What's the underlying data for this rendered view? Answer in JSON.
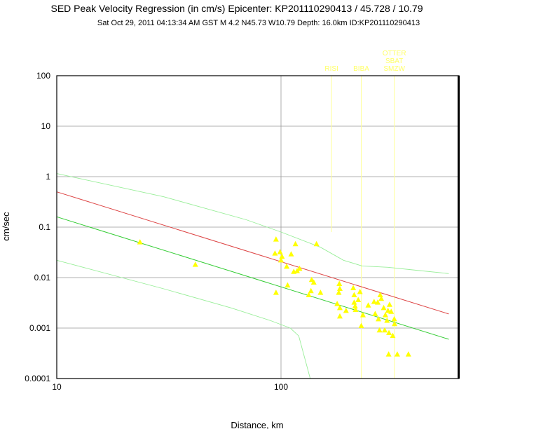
{
  "chart_data": {
    "type": "scatter",
    "title": "SED Peak Velocity Regression (in cm/s) Epicenter: KP201110290413 / 45.728 / 10.79",
    "subtitle": "Sat Oct 29, 2011 04:13:34 AM GST    M 4.2    N45.73 W10.79    Depth: 16.0km    ID:KP201110290413",
    "xlabel": "Distance, km",
    "ylabel": "cm/sec",
    "x_scale": "log",
    "y_scale": "log",
    "xlim": [
      10,
      560
    ],
    "ylim": [
      0.0001,
      100
    ],
    "grid": true,
    "x_ticks": [
      {
        "value": 10,
        "label": "10"
      },
      {
        "value": 100,
        "label": "100"
      }
    ],
    "y_ticks": [
      {
        "value": 100,
        "label": "100"
      },
      {
        "value": 10,
        "label": "10"
      },
      {
        "value": 1,
        "label": "1"
      },
      {
        "value": 0.1,
        "label": "0.1"
      },
      {
        "value": 0.01,
        "label": "0.01"
      },
      {
        "value": 0.001,
        "label": "0.001"
      },
      {
        "value": 0.0001,
        "label": "0.0001"
      }
    ],
    "colors": {
      "points": "#ffff00",
      "upper_line": "#dd4444",
      "regression_line": "#33cc33",
      "bounds": "#99ee99",
      "station_marker": "#ffff99",
      "grid": "#999999"
    },
    "station_markers": [
      {
        "label": "RISI",
        "x": 168
      },
      {
        "label": "BIBA",
        "x": 228
      },
      {
        "label": "OTTER",
        "x": 320
      },
      {
        "label": "SBAT",
        "x": 320
      },
      {
        "label": "SMZW",
        "x": 320
      }
    ],
    "series": [
      {
        "role": "upper_line",
        "x": [
          10,
          560
        ],
        "y": [
          0.5,
          0.0019
        ]
      },
      {
        "role": "regression_line",
        "x": [
          10,
          560
        ],
        "y": [
          0.16,
          0.0006
        ]
      },
      {
        "role": "upper_bound",
        "x": [
          10,
          30,
          70,
          100,
          150,
          190,
          230,
          300,
          400,
          560
        ],
        "y": [
          1.15,
          0.4,
          0.14,
          0.08,
          0.04,
          0.022,
          0.017,
          0.016,
          0.014,
          0.012
        ]
      },
      {
        "role": "lower_bound",
        "x": [
          10,
          30,
          60,
          90,
          110,
          120,
          135
        ],
        "y": [
          0.022,
          0.006,
          0.0025,
          0.0014,
          0.001,
          0.0007,
          0.0001
        ]
      },
      {
        "role": "observations",
        "x": [
          23.5,
          41.5,
          94,
          95,
          95,
          99,
          100,
          101,
          106,
          107,
          111,
          114,
          116,
          118,
          121,
          133,
          136,
          137,
          140,
          144,
          150,
          178,
          181,
          182,
          183,
          183,
          183,
          195,
          210,
          212,
          212,
          214,
          215,
          221,
          225,
          228,
          232,
          245,
          260,
          263,
          270,
          272,
          275,
          277,
          280,
          287,
          290,
          292,
          297,
          300,
          302,
          303,
          305,
          310,
          315,
          320,
          321,
          330,
          370
        ],
        "y": [
          0.05,
          0.018,
          0.03,
          0.057,
          0.005,
          0.032,
          0.022,
          0.026,
          0.0165,
          0.007,
          0.029,
          0.013,
          0.046,
          0.0135,
          0.015,
          0.0045,
          0.0054,
          0.009,
          0.008,
          0.046,
          0.005,
          0.003,
          0.005,
          0.0075,
          0.006,
          0.0025,
          0.0017,
          0.0022,
          0.0062,
          0.0032,
          0.0045,
          0.0027,
          0.0023,
          0.0036,
          0.0052,
          0.0011,
          0.0018,
          0.0028,
          0.0033,
          0.0019,
          0.0032,
          0.0015,
          0.0009,
          0.0045,
          0.0038,
          0.0025,
          0.0009,
          0.0018,
          0.0014,
          0.0022,
          0.0003,
          0.0008,
          0.0029,
          0.0021,
          0.0007,
          0.0015,
          0.0012,
          0.0003,
          0.0003
        ]
      }
    ]
  }
}
